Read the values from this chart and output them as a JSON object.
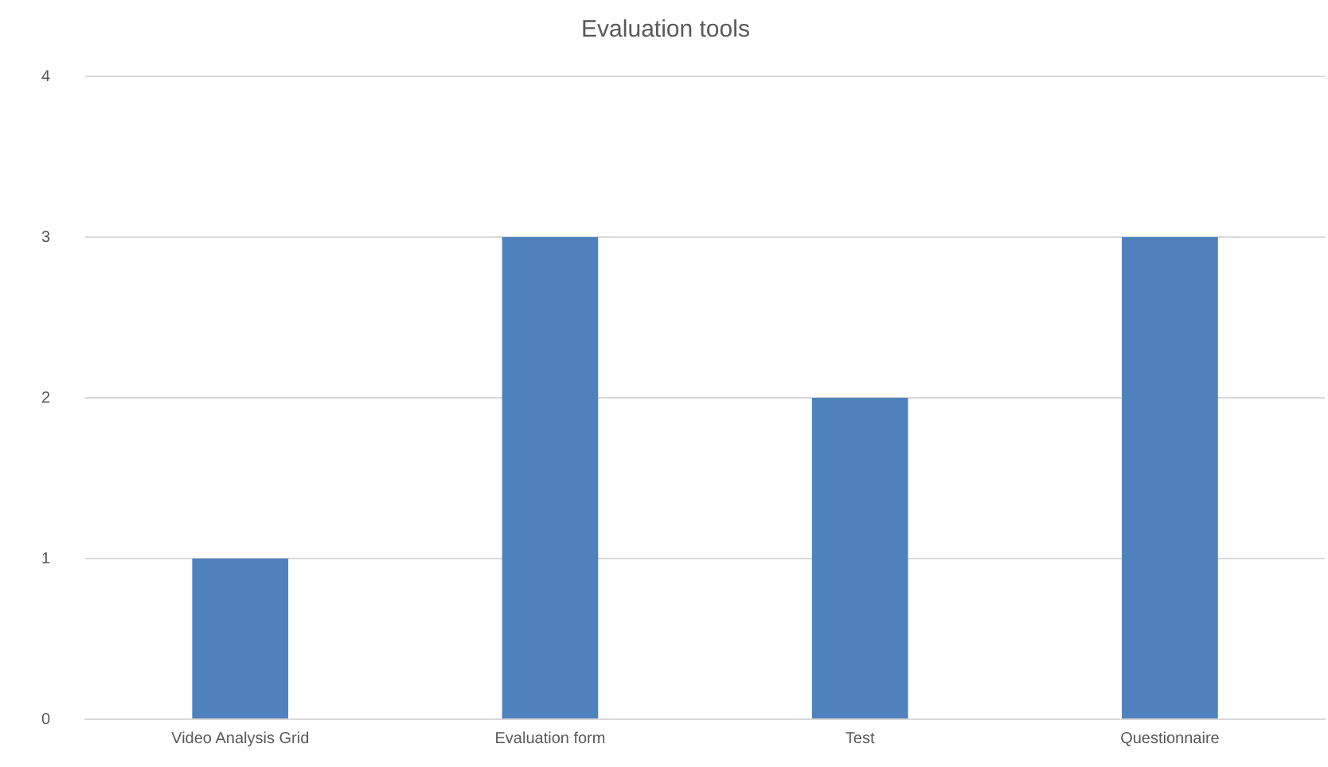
{
  "chart_data": {
    "type": "bar",
    "title": "Evaluation tools",
    "categories": [
      "Video Analysis Grid",
      "Evaluation form",
      "Test",
      "Questionnaire"
    ],
    "values": [
      1,
      3,
      2,
      3
    ],
    "color": "#4f81bd",
    "ylim": [
      0,
      4
    ],
    "yticks": [
      0,
      1,
      2,
      3,
      4
    ],
    "grid": "y",
    "legend": false
  }
}
